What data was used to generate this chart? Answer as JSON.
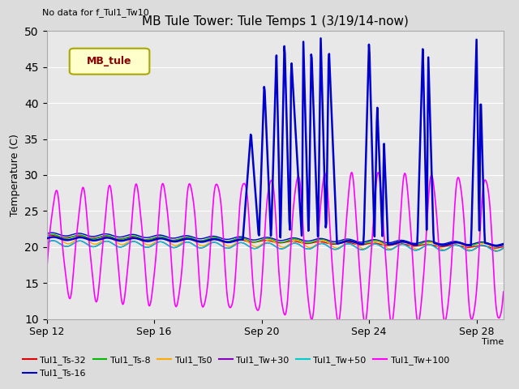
{
  "title": "MB Tule Tower: Tule Temps 1 (3/19/14-now)",
  "top_left_text": "No data for f_Tul1_Tw10",
  "xlabel": "Time",
  "ylabel": "Temperature (C)",
  "ylim": [
    10,
    50
  ],
  "yticks": [
    10,
    15,
    20,
    25,
    30,
    35,
    40,
    45,
    50
  ],
  "background_color": "#dcdcdc",
  "plot_bg_color": "#e8e8e8",
  "legend_box_label": "MB_tule",
  "legend_box_bg": "#ffffcc",
  "legend_box_border": "#aaa800",
  "legend_box_text_color": "#880000",
  "series": [
    {
      "label": "Tul1_Ts-32",
      "color": "#dd0000",
      "lw": 1.0
    },
    {
      "label": "Tul1_Ts-16",
      "color": "#0000cc",
      "lw": 1.0
    },
    {
      "label": "Tul1_Ts-8",
      "color": "#00bb00",
      "lw": 1.0
    },
    {
      "label": "Tul1_Ts0",
      "color": "#ffaa00",
      "lw": 1.0
    },
    {
      "label": "Tul1_Tw+30",
      "color": "#8800bb",
      "lw": 1.0
    },
    {
      "label": "Tul1_Tw+50",
      "color": "#00cccc",
      "lw": 1.0
    },
    {
      "label": "Tul1_Tw+100",
      "color": "#ff00ff",
      "lw": 1.2
    }
  ],
  "mbtule_color": "#0000cc",
  "mbtule_lw": 1.8,
  "xtick_labels": [
    "Sep 12",
    "Sep 16",
    "Sep 20",
    "Sep 24",
    "Sep 28"
  ],
  "xtick_positions": [
    0,
    4,
    8,
    12,
    16
  ],
  "grid_color": "#ffffff",
  "spine_color": "#aaaaaa"
}
